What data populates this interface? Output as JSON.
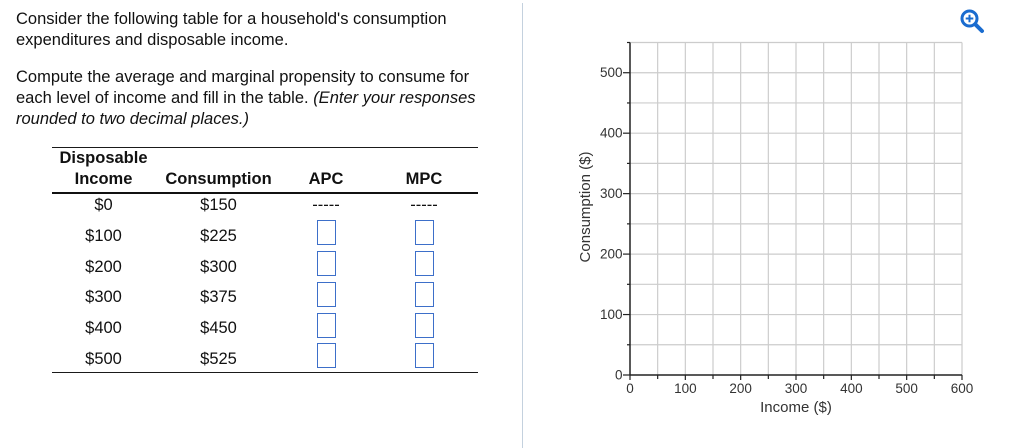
{
  "question": {
    "intro": "Consider the following table for a household's consumption expenditures and disposable income.",
    "instruction": "Compute the average and marginal propensity to consume for each level of income and fill in the table.",
    "instruction_note": "(Enter your responses rounded to two decimal places.)"
  },
  "table": {
    "headers": {
      "income_line1": "Disposable",
      "income_line2": "Income",
      "consumption": "Consumption",
      "apc": "APC",
      "mpc": "MPC"
    },
    "rows": [
      {
        "income": "$0",
        "consumption": "$150",
        "apc": "-----",
        "mpc": "-----"
      },
      {
        "income": "$100",
        "consumption": "$225",
        "apc": "",
        "mpc": ""
      },
      {
        "income": "$200",
        "consumption": "$300",
        "apc": "",
        "mpc": ""
      },
      {
        "income": "$300",
        "consumption": "$375",
        "apc": "",
        "mpc": ""
      },
      {
        "income": "$400",
        "consumption": "$450",
        "apc": "",
        "mpc": ""
      },
      {
        "income": "$500",
        "consumption": "$525",
        "apc": "",
        "mpc": ""
      }
    ]
  },
  "toolbar": {
    "zoom_icon": "zoom-in-icon",
    "zoom_color": "#1a6ccf"
  },
  "colors": {
    "input_border": "#3d6fc9",
    "grid": "#cccccc",
    "axis": "#222222",
    "divider": "#c4d1de"
  },
  "chart_data": {
    "type": "line",
    "title": "",
    "xlabel": "Income ($)",
    "ylabel": "Consumption ($)",
    "xlim": [
      0,
      600
    ],
    "ylim": [
      0,
      550
    ],
    "x_ticks": [
      0,
      100,
      200,
      300,
      400,
      500,
      600
    ],
    "y_ticks": [
      0,
      100,
      200,
      300,
      400,
      500
    ],
    "grid": true,
    "grid_step_x": 50,
    "grid_step_y": 50,
    "series": []
  }
}
